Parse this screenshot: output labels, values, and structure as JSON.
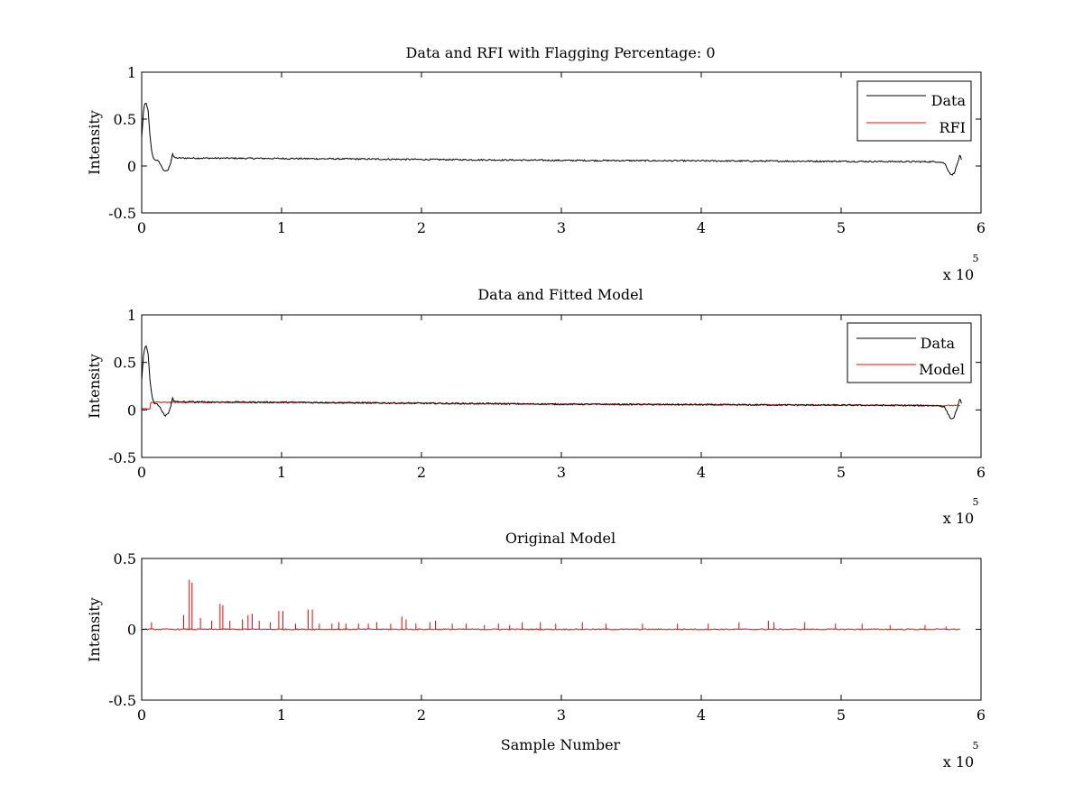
{
  "chart_data": [
    {
      "type": "line",
      "title": "Data and RFI with Flagging Percentage: 0",
      "xlabel": "",
      "ylabel": "Intensity",
      "xlim": [
        0,
        600000
      ],
      "ylim": [
        -0.5,
        1
      ],
      "x_ticks": [
        "0",
        "1",
        "2",
        "3",
        "4",
        "5",
        "6"
      ],
      "y_ticks": [
        "-0.5",
        "0",
        "0.5",
        "1"
      ],
      "x_exponent_base": "x 10",
      "x_exponent_power": "5",
      "legend_position": "top-right",
      "grid": false,
      "series": [
        {
          "name": "Data",
          "color": "#000000",
          "points": [
            [
              0,
              0.3
            ],
            [
              1500,
              0.62
            ],
            [
              3000,
              0.68
            ],
            [
              4500,
              0.6
            ],
            [
              6000,
              0.3
            ],
            [
              7500,
              0.12
            ],
            [
              9000,
              0.07
            ],
            [
              11000,
              0.06
            ],
            [
              13000,
              0.03
            ],
            [
              15000,
              -0.03
            ],
            [
              17000,
              -0.06
            ],
            [
              19000,
              -0.04
            ],
            [
              21000,
              0.05
            ],
            [
              22000,
              0.14
            ],
            [
              23000,
              0.09
            ],
            [
              25000,
              0.085
            ],
            [
              100000,
              0.08
            ],
            [
              200000,
              0.07
            ],
            [
              300000,
              0.06
            ],
            [
              400000,
              0.055
            ],
            [
              500000,
              0.05
            ],
            [
              570000,
              0.045
            ],
            [
              574000,
              0.03
            ],
            [
              577000,
              -0.06
            ],
            [
              579000,
              -0.1
            ],
            [
              581000,
              -0.07
            ],
            [
              583000,
              0.02
            ],
            [
              585000,
              0.12
            ],
            [
              586000,
              0.06
            ]
          ],
          "noise": 0.008
        },
        {
          "name": "RFI",
          "color": "#ff0000",
          "points": [],
          "noise": 0
        }
      ]
    },
    {
      "type": "line",
      "title": "Data and Fitted Model",
      "xlabel": "",
      "ylabel": "Intensity",
      "xlim": [
        0,
        600000
      ],
      "ylim": [
        -0.5,
        1
      ],
      "x_ticks": [
        "0",
        "1",
        "2",
        "3",
        "4",
        "5",
        "6"
      ],
      "y_ticks": [
        "-0.5",
        "0",
        "0.5",
        "1"
      ],
      "x_exponent_base": "x 10",
      "x_exponent_power": "5",
      "legend_position": "top-right",
      "grid": false,
      "series": [
        {
          "name": "Model",
          "color": "#ff0000",
          "points": [
            [
              0,
              0.01
            ],
            [
              6000,
              0.01
            ],
            [
              6001,
              0.08
            ],
            [
              100000,
              0.08
            ],
            [
              200000,
              0.07
            ],
            [
              300000,
              0.06
            ],
            [
              400000,
              0.055
            ],
            [
              500000,
              0.05
            ],
            [
              585000,
              0.045
            ]
          ],
          "noise": 0.006
        },
        {
          "name": "Data",
          "color": "#000000",
          "points": [
            [
              0,
              0.3
            ],
            [
              1500,
              0.62
            ],
            [
              3000,
              0.68
            ],
            [
              4500,
              0.6
            ],
            [
              6000,
              0.3
            ],
            [
              7500,
              0.12
            ],
            [
              9000,
              0.07
            ],
            [
              11000,
              0.06
            ],
            [
              13000,
              0.03
            ],
            [
              15000,
              -0.03
            ],
            [
              17000,
              -0.06
            ],
            [
              19000,
              -0.04
            ],
            [
              21000,
              0.05
            ],
            [
              22000,
              0.14
            ],
            [
              23000,
              0.09
            ],
            [
              25000,
              0.085
            ],
            [
              100000,
              0.08
            ],
            [
              200000,
              0.07
            ],
            [
              300000,
              0.06
            ],
            [
              400000,
              0.055
            ],
            [
              500000,
              0.05
            ],
            [
              570000,
              0.045
            ],
            [
              574000,
              0.03
            ],
            [
              577000,
              -0.06
            ],
            [
              579000,
              -0.1
            ],
            [
              581000,
              -0.07
            ],
            [
              583000,
              0.02
            ],
            [
              585000,
              0.12
            ],
            [
              586000,
              0.06
            ]
          ],
          "noise": 0.008
        }
      ]
    },
    {
      "type": "line",
      "title": "Original Model",
      "xlabel": "Sample Number",
      "ylabel": "Intensity",
      "xlim": [
        0,
        600000
      ],
      "ylim": [
        -0.5,
        0.5
      ],
      "x_ticks": [
        "0",
        "1",
        "2",
        "3",
        "4",
        "5",
        "6"
      ],
      "y_ticks": [
        "-0.5",
        "0",
        "0.5"
      ],
      "x_exponent_base": "x 10",
      "x_exponent_power": "5",
      "legend_position": "none",
      "grid": false,
      "series": [
        {
          "name": "",
          "color": "#ff0000",
          "baseline": [
            [
              0,
              0.0
            ],
            [
              585000,
              0.0
            ]
          ],
          "spikes": [
            [
              7000,
              0.05
            ],
            [
              30000,
              0.1
            ],
            [
              34000,
              0.35
            ],
            [
              36000,
              0.33
            ],
            [
              42000,
              0.08
            ],
            [
              50000,
              0.06
            ],
            [
              56000,
              0.18
            ],
            [
              58000,
              0.17
            ],
            [
              63000,
              0.06
            ],
            [
              72000,
              0.07
            ],
            [
              76000,
              0.1
            ],
            [
              79000,
              0.11
            ],
            [
              84000,
              0.06
            ],
            [
              92000,
              0.05
            ],
            [
              98000,
              0.13
            ],
            [
              101000,
              0.13
            ],
            [
              110000,
              0.04
            ],
            [
              119000,
              0.14
            ],
            [
              122000,
              0.14
            ],
            [
              127000,
              0.04
            ],
            [
              136000,
              0.04
            ],
            [
              141000,
              0.05
            ],
            [
              146000,
              0.04
            ],
            [
              155000,
              0.04
            ],
            [
              162000,
              0.04
            ],
            [
              168000,
              0.05
            ],
            [
              178000,
              0.04
            ],
            [
              186000,
              0.09
            ],
            [
              189000,
              0.07
            ],
            [
              196000,
              0.04
            ],
            [
              206000,
              0.05
            ],
            [
              210000,
              0.06
            ],
            [
              222000,
              0.04
            ],
            [
              232000,
              0.04
            ],
            [
              245000,
              0.03
            ],
            [
              255000,
              0.04
            ],
            [
              263000,
              0.03
            ],
            [
              272000,
              0.05
            ],
            [
              285000,
              0.05
            ],
            [
              296000,
              0.04
            ],
            [
              315000,
              0.05
            ],
            [
              332000,
              0.04
            ],
            [
              358000,
              0.04
            ],
            [
              383000,
              0.04
            ],
            [
              405000,
              0.04
            ],
            [
              427000,
              0.05
            ],
            [
              448000,
              0.06
            ],
            [
              452000,
              0.05
            ],
            [
              474000,
              0.05
            ],
            [
              496000,
              0.04
            ],
            [
              515000,
              0.04
            ],
            [
              535000,
              0.03
            ],
            [
              560000,
              0.03
            ],
            [
              575000,
              0.02
            ]
          ],
          "noise": 0.004
        }
      ]
    }
  ]
}
